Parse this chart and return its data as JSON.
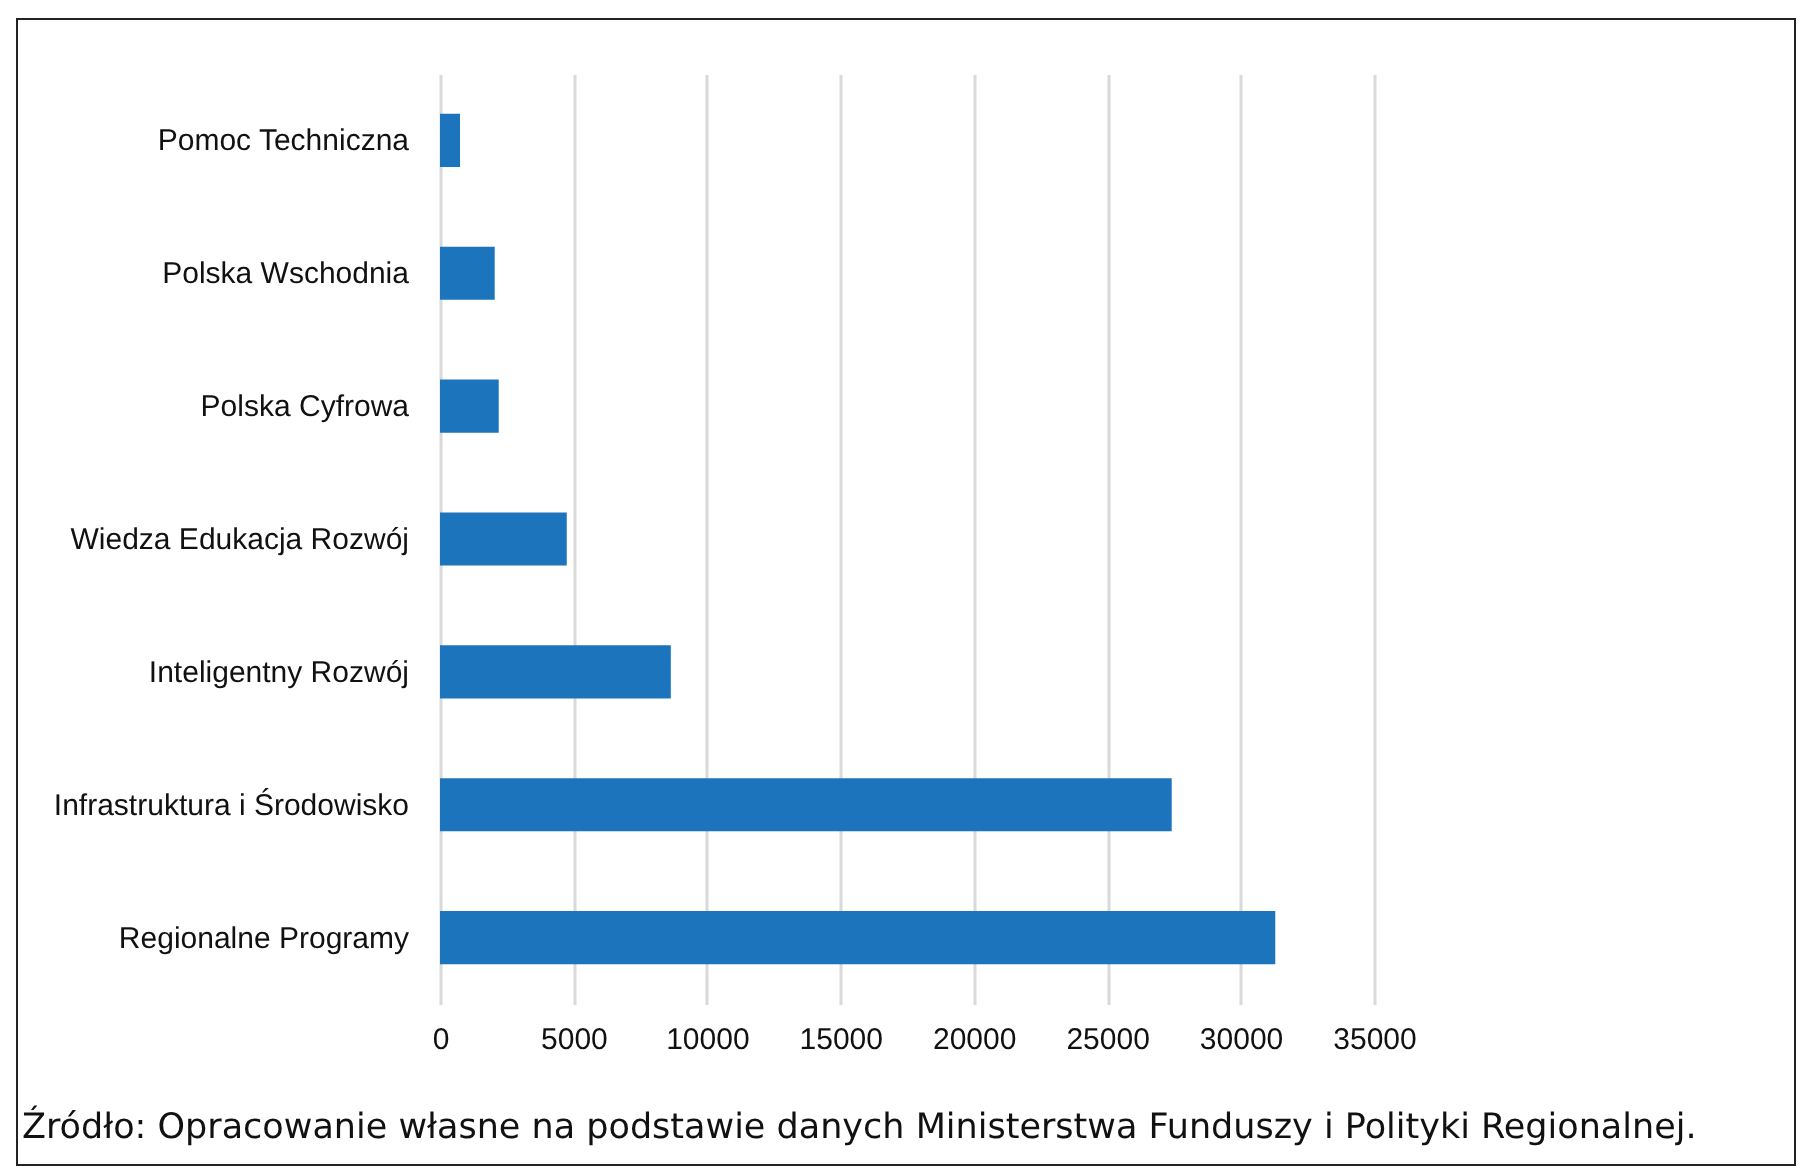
{
  "chart_data": {
    "type": "bar",
    "orientation": "horizontal",
    "categories": [
      "Pomoc Techniczna",
      "Polska Wschodnia",
      "Polska Cyfrowa",
      "Wiedza Edukacja Rozwój",
      "Inteligentny Rozwój",
      "Infrastruktura i Środowisko",
      "Regionalne Programy"
    ],
    "values": [
      750,
      2050,
      2200,
      4750,
      8650,
      27420,
      31300
    ],
    "color": "#1c75bc",
    "xlim": [
      0,
      35000
    ],
    "xticks": [
      0,
      5000,
      10000,
      15000,
      20000,
      25000,
      30000,
      35000
    ],
    "grid": "x",
    "annotations": [
      "Źródło: Opracowanie własne na podstawie danych Ministerstwa Funduszy i Polityki Regionalnej."
    ]
  }
}
